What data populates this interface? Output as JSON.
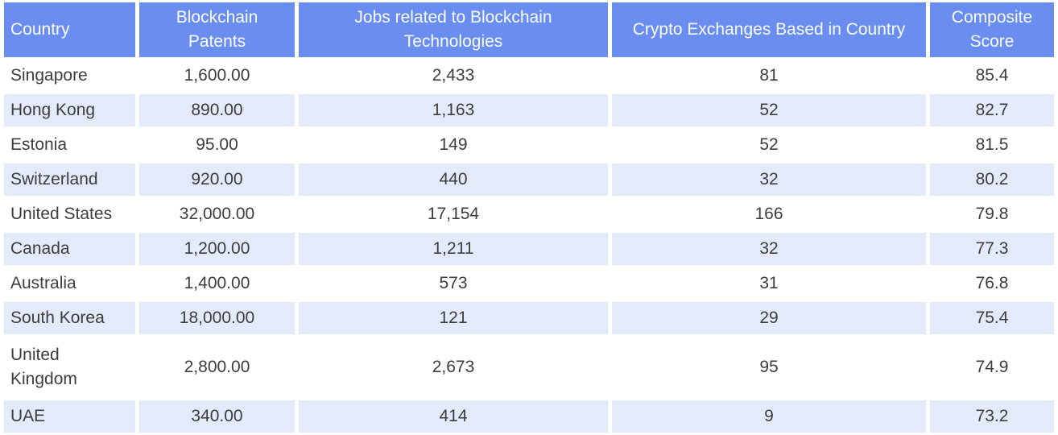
{
  "colors": {
    "header_background": "#6A8DF0",
    "header_text": "#FAFBFF",
    "stripe_background": "#E3EAFA",
    "body_text": "#3D3D3D",
    "page_background": "#FFFFFF"
  },
  "table": {
    "columns": [
      {
        "label": "Country"
      },
      {
        "label": "Blockchain Patents"
      },
      {
        "label": "Jobs related to Blockchain Technologies"
      },
      {
        "label": "Crypto Exchanges Based in Country"
      },
      {
        "label": "Composite Score"
      }
    ],
    "rows": [
      {
        "country": "Singapore",
        "patents": "1,600.00",
        "jobs": "2,433",
        "exchanges": "81",
        "score": "85.4"
      },
      {
        "country": "Hong Kong",
        "patents": "890.00",
        "jobs": "1,163",
        "exchanges": "52",
        "score": "82.7"
      },
      {
        "country": "Estonia",
        "patents": "95.00",
        "jobs": "149",
        "exchanges": "52",
        "score": "81.5"
      },
      {
        "country": "Switzerland",
        "patents": "920.00",
        "jobs": "440",
        "exchanges": "32",
        "score": "80.2"
      },
      {
        "country": "United States",
        "patents": "32,000.00",
        "jobs": "17,154",
        "exchanges": "166",
        "score": "79.8"
      },
      {
        "country": "Canada",
        "patents": "1,200.00",
        "jobs": "1,211",
        "exchanges": "32",
        "score": "77.3"
      },
      {
        "country": "Australia",
        "patents": "1,400.00",
        "jobs": "573",
        "exchanges": "31",
        "score": "76.8"
      },
      {
        "country": "South Korea",
        "patents": "18,000.00",
        "jobs": "121",
        "exchanges": "29",
        "score": "75.4"
      },
      {
        "country": "United Kingdom",
        "patents": "2,800.00",
        "jobs": "2,673",
        "exchanges": "95",
        "score": "74.9"
      },
      {
        "country": "UAE",
        "patents": "340.00",
        "jobs": "414",
        "exchanges": "9",
        "score": "73.2"
      }
    ]
  },
  "chart_data": {
    "type": "table",
    "title": "",
    "columns": [
      "Country",
      "Blockchain Patents",
      "Jobs related to Blockchain Technologies",
      "Crypto Exchanges Based in Country",
      "Composite Score"
    ],
    "rows": [
      [
        "Singapore",
        1600.0,
        2433,
        81,
        85.4
      ],
      [
        "Hong Kong",
        890.0,
        1163,
        52,
        82.7
      ],
      [
        "Estonia",
        95.0,
        149,
        52,
        81.5
      ],
      [
        "Switzerland",
        920.0,
        440,
        32,
        80.2
      ],
      [
        "United States",
        32000.0,
        17154,
        166,
        79.8
      ],
      [
        "Canada",
        1200.0,
        1211,
        32,
        77.3
      ],
      [
        "Australia",
        1400.0,
        573,
        31,
        76.8
      ],
      [
        "South Korea",
        18000.0,
        121,
        29,
        75.4
      ],
      [
        "United Kingdom",
        2800.0,
        2673,
        95,
        74.9
      ],
      [
        "UAE",
        340.0,
        414,
        9,
        73.2
      ]
    ],
    "layout_hints": {
      "striped_rows": "even rows highlighted",
      "numeric_columns_alignment": "center",
      "country_column_alignment": "left"
    }
  }
}
